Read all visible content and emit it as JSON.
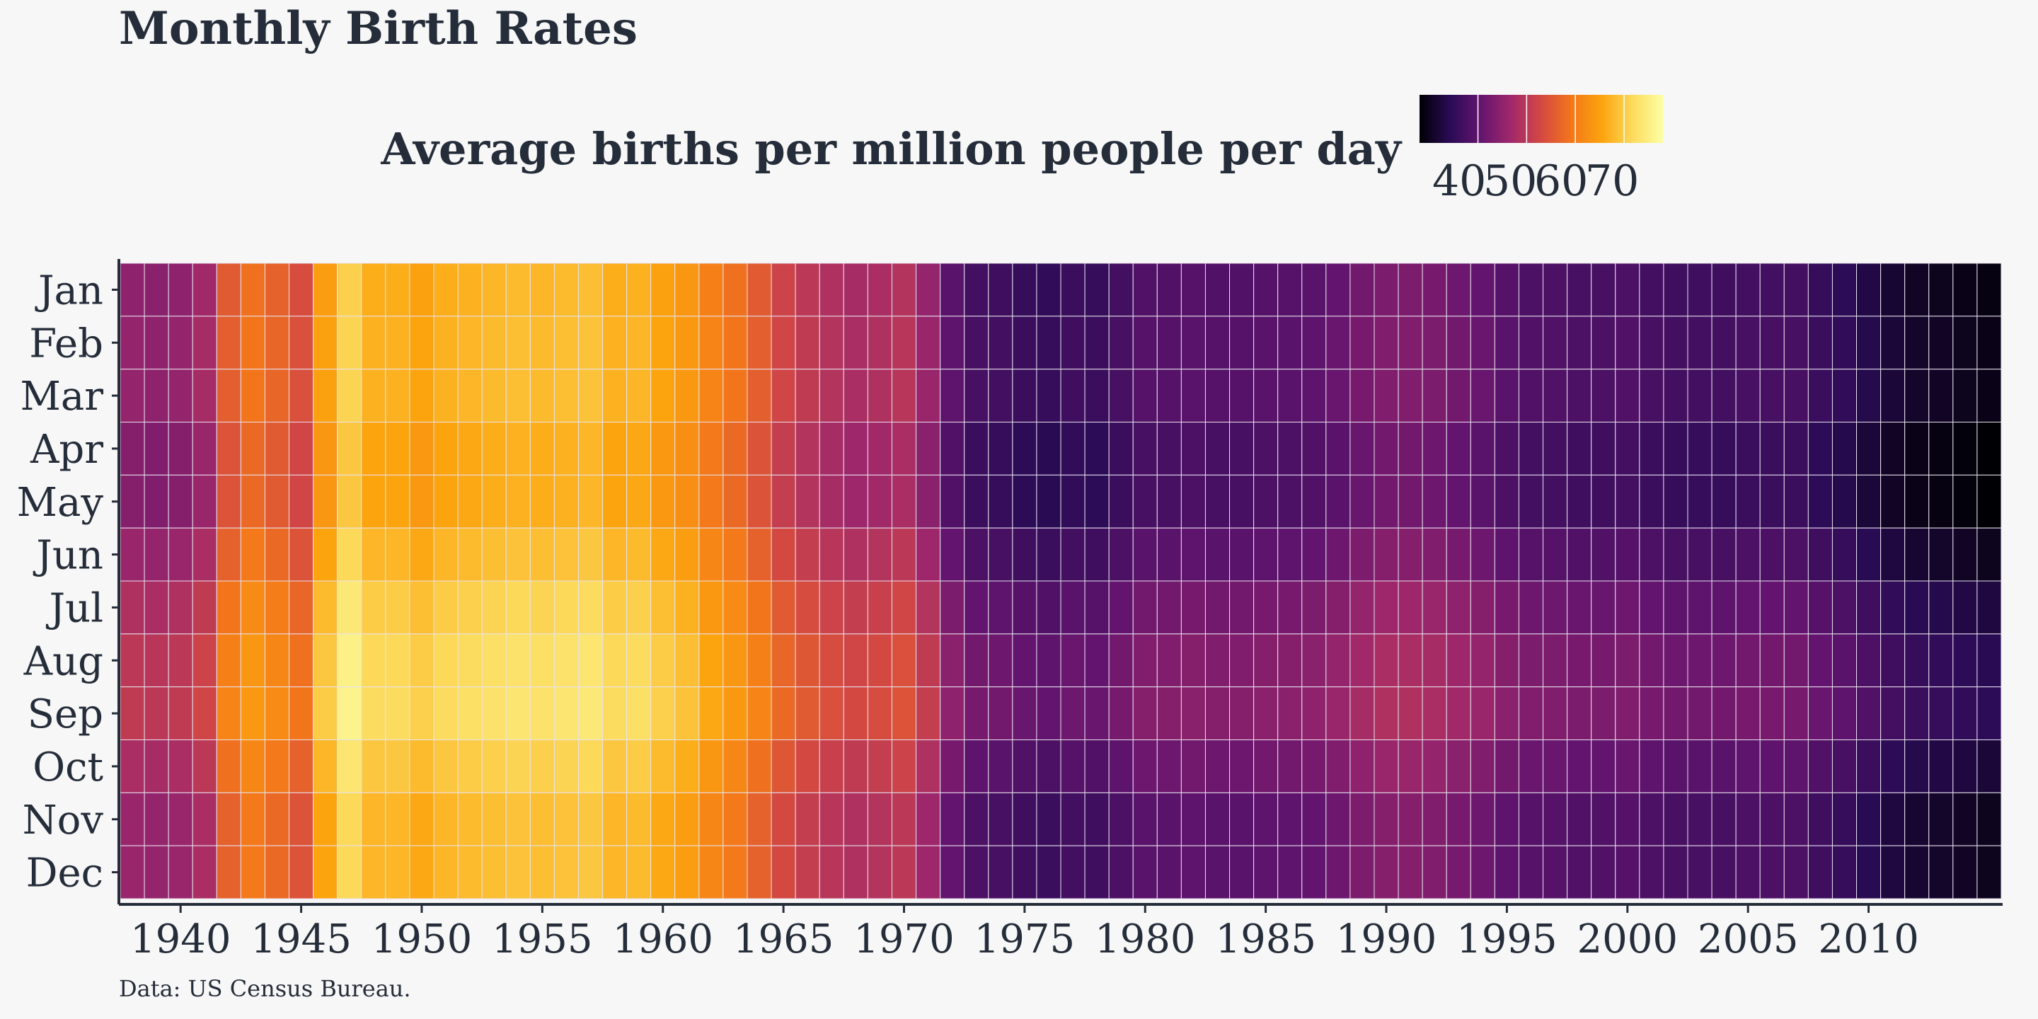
{
  "chart_data": {
    "type": "heatmap",
    "title": "Monthly Birth Rates",
    "legend_title": "Average births per million people per day",
    "legend_ticks": [
      40,
      50,
      60,
      70
    ],
    "color_range": [
      28,
      78
    ],
    "colormap": [
      "#000004",
      "#2a0b56",
      "#63146e",
      "#a0286b",
      "#d44842",
      "#f3771a",
      "#fca40e",
      "#fcdb5c",
      "#fcffa4"
    ],
    "caption": "Data: US Census Bureau.",
    "months": [
      "Jan",
      "Feb",
      "Mar",
      "Apr",
      "May",
      "Jun",
      "Jul",
      "Aug",
      "Sep",
      "Oct",
      "Nov",
      "Dec"
    ],
    "x_ticks": [
      1940,
      1945,
      1950,
      1955,
      1960,
      1965,
      1970,
      1975,
      1980,
      1985,
      1990,
      1995,
      2000,
      2005,
      2010
    ],
    "years": [
      1938,
      1939,
      1940,
      1941,
      1942,
      1943,
      1944,
      1945,
      1946,
      1947,
      1948,
      1949,
      1950,
      1951,
      1952,
      1953,
      1954,
      1955,
      1956,
      1957,
      1958,
      1959,
      1960,
      1961,
      1962,
      1963,
      1964,
      1965,
      1966,
      1967,
      1968,
      1969,
      1970,
      1971,
      1972,
      1973,
      1974,
      1975,
      1976,
      1977,
      1978,
      1979,
      1980,
      1981,
      1982,
      1983,
      1984,
      1985,
      1986,
      1987,
      1988,
      1989,
      1990,
      1991,
      1992,
      1993,
      1994,
      1995,
      1996,
      1997,
      1998,
      1999,
      2000,
      2001,
      2002,
      2003,
      2004,
      2005,
      2006,
      2007,
      2008,
      2009,
      2010,
      2011,
      2012,
      2013,
      2014,
      2015
    ],
    "yearly_base": [
      46.5,
      46.0,
      46.5,
      48.5,
      57.0,
      60.0,
      58.0,
      55.0,
      66.0,
      72.0,
      68.0,
      68.0,
      66.5,
      68.0,
      68.5,
      69.0,
      69.5,
      69.0,
      69.5,
      70.0,
      68.0,
      68.5,
      66.5,
      65.0,
      62.0,
      60.0,
      57.0,
      53.5,
      51.5,
      50.0,
      49.0,
      49.5,
      50.5,
      47.0,
      41.0,
      38.5,
      38.0,
      37.0,
      36.5,
      37.5,
      37.0,
      38.5,
      40.0,
      40.0,
      40.5,
      40.0,
      40.0,
      40.5,
      40.5,
      41.0,
      42.0,
      43.5,
      44.5,
      44.5,
      44.0,
      43.0,
      42.0,
      40.5,
      39.5,
      39.5,
      39.0,
      39.0,
      39.5,
      38.5,
      38.0,
      38.0,
      38.0,
      38.5,
      38.5,
      38.5,
      37.0,
      36.0,
      34.5,
      33.0,
      32.0,
      31.5,
      31.0,
      30.5
    ],
    "monthly_offset": [
      -1.5,
      -1.0,
      -1.0,
      -2.5,
      -2.5,
      -0.5,
      2.0,
      3.5,
      4.0,
      1.5,
      -0.5,
      -0.5
    ]
  }
}
